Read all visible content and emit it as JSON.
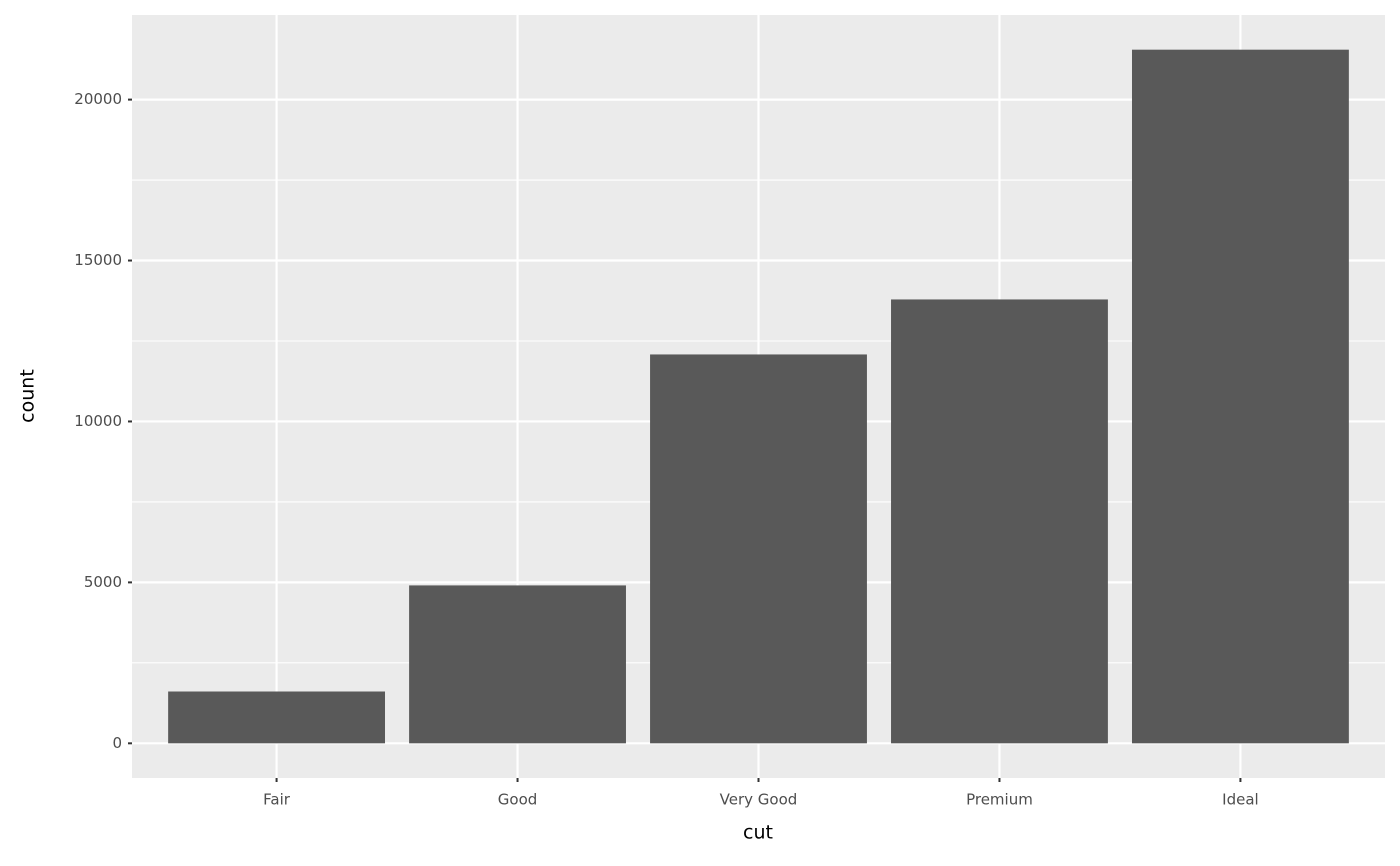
{
  "chart_data": {
    "type": "bar",
    "x_label": "cut",
    "y_label": "count",
    "categories": [
      "Fair",
      "Good",
      "Very Good",
      "Premium",
      "Ideal"
    ],
    "values": [
      1610,
      4906,
      12082,
      13791,
      21551
    ],
    "color": "#595959",
    "ylim": [
      -1077.55,
      22628.55
    ],
    "yticks": [
      0,
      5000,
      10000,
      15000,
      20000
    ],
    "yticks_minor": [
      2500,
      7500,
      12500,
      17500
    ],
    "grid": true
  }
}
